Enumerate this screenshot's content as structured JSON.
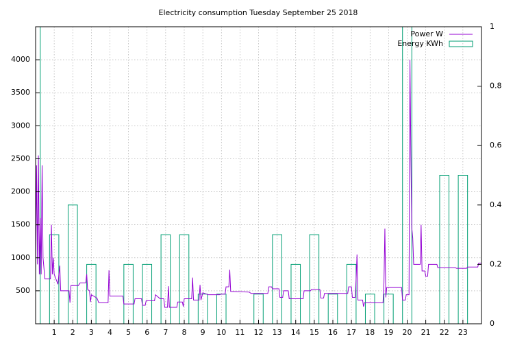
{
  "chart_data": {
    "type": "line",
    "title": "Electricity consumption Tuesday September 25 2018",
    "xlim": [
      0,
      24
    ],
    "xticks": [
      1,
      2,
      3,
      4,
      5,
      6,
      7,
      8,
      9,
      10,
      11,
      12,
      13,
      14,
      15,
      16,
      17,
      18,
      19,
      20,
      21,
      22,
      23
    ],
    "ylim": [
      0,
      4500
    ],
    "yticks": [
      500,
      1000,
      1500,
      2000,
      2500,
      3000,
      3500,
      4000
    ],
    "y2lim": [
      0,
      1
    ],
    "y2ticks": [
      0,
      0.2,
      0.4,
      0.6,
      0.8,
      1
    ],
    "grid": true,
    "legend": "top-right",
    "box_width": 0.5,
    "series": [
      {
        "name": "Power W",
        "color": "#9400d3",
        "type": "line",
        "x": [
          0,
          0.05,
          0.1,
          0.15,
          0.2,
          0.25,
          0.3,
          0.35,
          0.4,
          0.5,
          0.8,
          0.85,
          0.9,
          0.95,
          1.0,
          1.2,
          1.3,
          1.35,
          1.8,
          1.85,
          1.9,
          2.3,
          2.4,
          2.7,
          2.75,
          2.8,
          2.9,
          2.95,
          3.0,
          3.3,
          3.4,
          3.9,
          3.95,
          4.0,
          4.7,
          4.75,
          5.3,
          5.35,
          5.7,
          5.75,
          5.9,
          5.95,
          6.4,
          6.45,
          6.7,
          6.9,
          6.95,
          7.1,
          7.15,
          7.2,
          7.6,
          7.65,
          7.9,
          7.95,
          8.0,
          8.4,
          8.45,
          8.5,
          8.8,
          8.85,
          8.9,
          9.0,
          9.3,
          9.9,
          10.0,
          10.2,
          10.25,
          10.4,
          10.45,
          10.5,
          11.5,
          11.6,
          12.5,
          12.55,
          12.7,
          12.75,
          13.1,
          13.15,
          13.3,
          13.35,
          13.6,
          13.65,
          14.4,
          14.45,
          14.8,
          14.85,
          15.3,
          15.35,
          15.5,
          15.55,
          16.8,
          16.85,
          17.0,
          17.05,
          17.2,
          17.25,
          17.3,
          17.35,
          17.6,
          17.65,
          17.7,
          18.7,
          18.75,
          18.8,
          18.85,
          18.9,
          19.7,
          19.75,
          19.9,
          19.95,
          20.1,
          20.15,
          20.2,
          20.25,
          20.3,
          20.35,
          20.7,
          20.75,
          20.8,
          20.95,
          21.0,
          21.1,
          21.15,
          21.6,
          21.65,
          22.6,
          22.65,
          23.2,
          23.25,
          23.8,
          23.85,
          24
        ],
        "values": [
          780,
          2400,
          900,
          2550,
          750,
          1600,
          750,
          2400,
          1000,
          680,
          680,
          1500,
          750,
          1000,
          750,
          600,
          880,
          500,
          500,
          320,
          580,
          580,
          620,
          620,
          750,
          520,
          500,
          330,
          440,
          390,
          320,
          320,
          810,
          420,
          420,
          300,
          300,
          380,
          380,
          280,
          280,
          350,
          350,
          440,
          380,
          380,
          250,
          250,
          570,
          250,
          250,
          330,
          330,
          260,
          380,
          380,
          700,
          360,
          360,
          590,
          360,
          470,
          440,
          440,
          450,
          450,
          560,
          560,
          820,
          490,
          480,
          460,
          460,
          560,
          560,
          530,
          530,
          400,
          400,
          500,
          500,
          380,
          380,
          500,
          500,
          520,
          520,
          390,
          390,
          460,
          460,
          560,
          560,
          400,
          400,
          660,
          1050,
          360,
          360,
          260,
          320,
          320,
          620,
          1440,
          400,
          550,
          550,
          360,
          360,
          440,
          440,
          4000,
          2550,
          1450,
          1300,
          900,
          900,
          1500,
          800,
          800,
          720,
          720,
          900,
          900,
          850,
          850,
          840,
          840,
          860,
          860,
          920,
          920
        ]
      },
      {
        "name": "Energy KWh",
        "color": "#009e73",
        "type": "boxes",
        "axis": "y2",
        "x": [
          0,
          1,
          2,
          3,
          5,
          6,
          7,
          8,
          9,
          10,
          12,
          13,
          14,
          15,
          16,
          17,
          18,
          19,
          20,
          22,
          23
        ],
        "values": [
          1,
          0.3,
          0.4,
          0.2,
          0.2,
          0.2,
          0.3,
          0.3,
          0.1,
          0.1,
          0.1,
          0.3,
          0.2,
          0.3,
          0.1,
          0.2,
          0.1,
          0.1,
          1,
          0.5,
          0.5
        ]
      }
    ]
  }
}
